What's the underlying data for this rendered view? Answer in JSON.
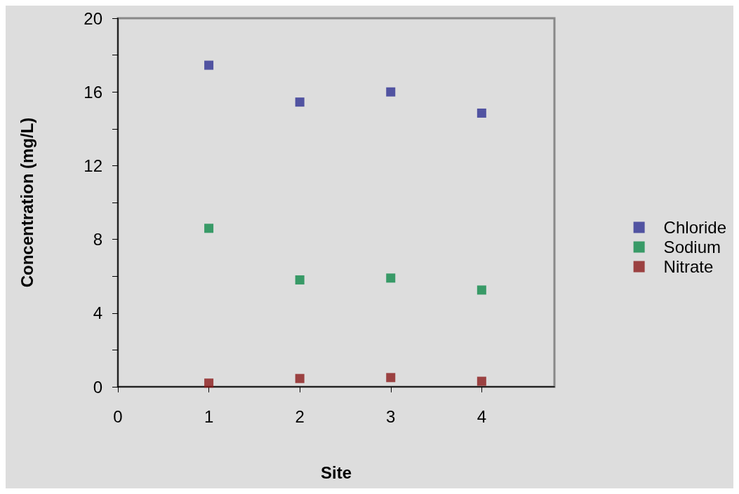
{
  "chart_data": {
    "type": "scatter",
    "xlabel": "Site",
    "ylabel": "Concentration (mg/L)",
    "xlim": [
      0,
      4.8
    ],
    "xticks": [
      0,
      1,
      2,
      3,
      4
    ],
    "ylim": [
      0,
      20
    ],
    "yticks": [
      0,
      {
        "value": 2,
        "label": null
      },
      4,
      {
        "value": 6,
        "label": null
      },
      8,
      {
        "value": 10,
        "label": null
      },
      12,
      {
        "value": 14,
        "label": null
      },
      16,
      {
        "value": 18,
        "label": null
      },
      20
    ],
    "x": [
      1,
      2,
      3,
      4
    ],
    "series": [
      {
        "name": "Chloride",
        "color": "#2e3192",
        "values": [
          17.45,
          15.45,
          16.0,
          14.85
        ]
      },
      {
        "name": "Sodium",
        "color": "#0f8a4a",
        "values": [
          8.6,
          5.8,
          5.9,
          5.25
        ]
      },
      {
        "name": "Nitrate",
        "color": "#8b1a1a",
        "values": [
          0.2,
          0.45,
          0.5,
          0.3
        ]
      }
    ],
    "marker": "square",
    "grid": false,
    "legend": "right"
  }
}
